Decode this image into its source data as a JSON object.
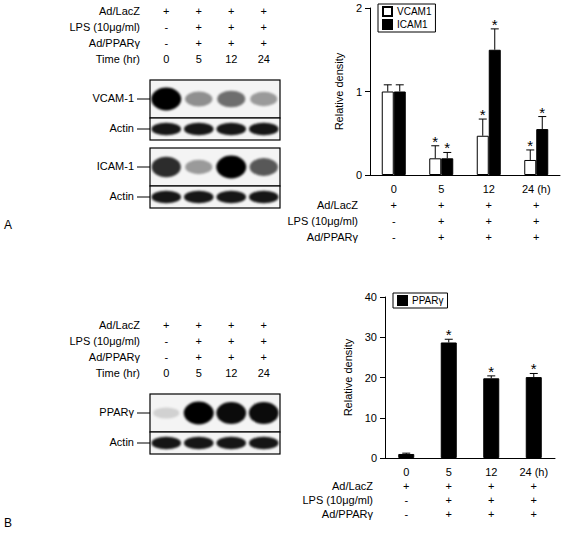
{
  "chart_data": [
    {
      "type": "bar",
      "categories": [
        "0",
        "5",
        "12",
        "24 (h)"
      ],
      "series": [
        {
          "name": "VCAM1",
          "color": "#ffffff",
          "values": [
            1.0,
            0.2,
            0.47,
            0.18
          ],
          "errors": [
            0.08,
            0.15,
            0.2,
            0.12
          ],
          "significance": [
            null,
            "*",
            "*",
            "*"
          ]
        },
        {
          "name": "ICAM1",
          "color": "#000000",
          "values": [
            1.0,
            0.2,
            1.5,
            0.55
          ],
          "errors": [
            0.08,
            0.07,
            0.25,
            0.15
          ],
          "significance": [
            null,
            "*",
            "*",
            "*"
          ]
        }
      ],
      "y_label": "Relative density",
      "ylim": [
        0,
        2
      ],
      "yticks": [
        0,
        1,
        2
      ],
      "grid": false,
      "legend": "upper left",
      "conditions": [
        {
          "label": "Ad/LacZ",
          "values": [
            "+",
            "+",
            "+",
            "+"
          ]
        },
        {
          "label": "LPS (10μg/ml)",
          "values": [
            "-",
            "+",
            "+",
            "+"
          ]
        },
        {
          "label": "Ad/PPARγ",
          "values": [
            "-",
            "+",
            "+",
            "+"
          ]
        }
      ]
    },
    {
      "type": "bar",
      "categories": [
        "0",
        "5",
        "12",
        "24 (h)"
      ],
      "series": [
        {
          "name": "PPARγ",
          "color": "#000000",
          "values": [
            1.0,
            28.7,
            19.8,
            20.1
          ],
          "errors": [
            0.2,
            0.8,
            0.6,
            0.9
          ],
          "significance": [
            null,
            "*",
            "*",
            "*"
          ]
        }
      ],
      "y_label": "Relative density",
      "ylim": [
        0,
        40
      ],
      "yticks": [
        0,
        10,
        20,
        30,
        40
      ],
      "grid": false,
      "legend": "upper left",
      "conditions": [
        {
          "label": "Ad/LacZ",
          "values": [
            "+",
            "+",
            "+",
            "+"
          ]
        },
        {
          "label": "LPS (10μg/ml)",
          "values": [
            "-",
            "+",
            "+",
            "+"
          ]
        },
        {
          "label": "Ad/PPARγ",
          "values": [
            "-",
            "+",
            "+",
            "+"
          ]
        }
      ]
    }
  ],
  "blots": [
    {
      "panel": "A",
      "conditions": [
        {
          "label": "Ad/LacZ",
          "values": [
            "+",
            "+",
            "+",
            "+"
          ]
        },
        {
          "label": "LPS (10μg/ml)",
          "values": [
            "-",
            "+",
            "+",
            "+"
          ]
        },
        {
          "label": "Ad/PPARγ",
          "values": [
            "-",
            "+",
            "+",
            "+"
          ]
        },
        {
          "label": "Time (hr)",
          "values": [
            "0",
            "5",
            "12",
            "24"
          ]
        }
      ],
      "bands": [
        {
          "label": "VCAM-1",
          "intensity": [
            1.0,
            0.35,
            0.5,
            0.3
          ]
        },
        {
          "label": "Actin",
          "intensity": [
            0.9,
            0.9,
            0.9,
            0.9
          ]
        },
        {
          "label": "ICAM-1",
          "intensity": [
            0.8,
            0.3,
            1.0,
            0.6
          ]
        },
        {
          "label": "Actin",
          "intensity": [
            0.9,
            0.9,
            0.9,
            0.9
          ]
        }
      ]
    },
    {
      "panel": "B",
      "conditions": [
        {
          "label": "Ad/LacZ",
          "values": [
            "+",
            "+",
            "+",
            "+"
          ]
        },
        {
          "label": "LPS (10μg/ml)",
          "values": [
            "-",
            "+",
            "+",
            "+"
          ]
        },
        {
          "label": "Ad/PPARγ",
          "values": [
            "-",
            "+",
            "+",
            "+"
          ]
        },
        {
          "label": "Time (hr)",
          "values": [
            "0",
            "5",
            "12",
            "24"
          ]
        }
      ],
      "bands": [
        {
          "label": "PPARγ",
          "intensity": [
            0.05,
            1.0,
            0.95,
            0.95
          ]
        },
        {
          "label": "Actin",
          "intensity": [
            0.9,
            0.9,
            0.9,
            0.9
          ]
        }
      ]
    }
  ]
}
